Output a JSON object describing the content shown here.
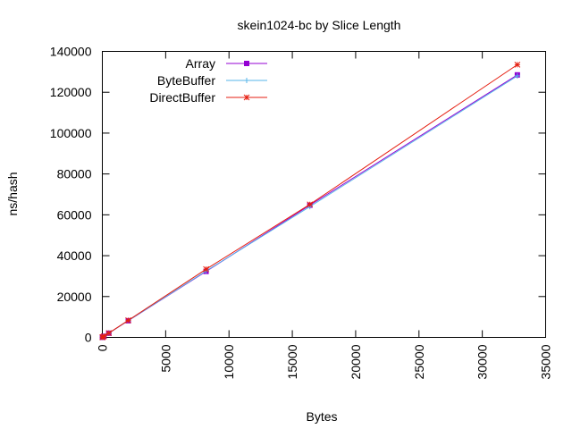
{
  "chart_data": {
    "type": "line",
    "title": "skein1024-bc by Slice Length",
    "xlabel": "Bytes",
    "ylabel": "ns/hash",
    "xlim": [
      0,
      35000
    ],
    "ylim": [
      0,
      140000
    ],
    "xticks": [
      0,
      5000,
      10000,
      15000,
      20000,
      25000,
      30000,
      35000
    ],
    "yticks": [
      0,
      20000,
      40000,
      60000,
      80000,
      100000,
      120000,
      140000
    ],
    "grid": false,
    "legend_position": "top-left",
    "series": [
      {
        "name": "Array",
        "color": "#9400d3",
        "marker": "square",
        "x": [
          8,
          32,
          128,
          512,
          2048,
          8192,
          16384,
          32768
        ],
        "y": [
          40,
          140,
          520,
          2050,
          8150,
          32300,
          64700,
          128500
        ]
      },
      {
        "name": "ByteBuffer",
        "color": "#56b4e9",
        "marker": "plus",
        "x": [
          8,
          32,
          128,
          512,
          2048,
          8192,
          16384,
          32768
        ],
        "y": [
          40,
          140,
          520,
          2060,
          8200,
          32500,
          64000,
          128000
        ]
      },
      {
        "name": "DirectBuffer",
        "color": "#e51e10",
        "marker": "star",
        "x": [
          8,
          32,
          128,
          512,
          2048,
          8192,
          16384,
          32768
        ],
        "y": [
          40,
          150,
          540,
          2100,
          8350,
          33400,
          65100,
          133500
        ]
      }
    ]
  }
}
